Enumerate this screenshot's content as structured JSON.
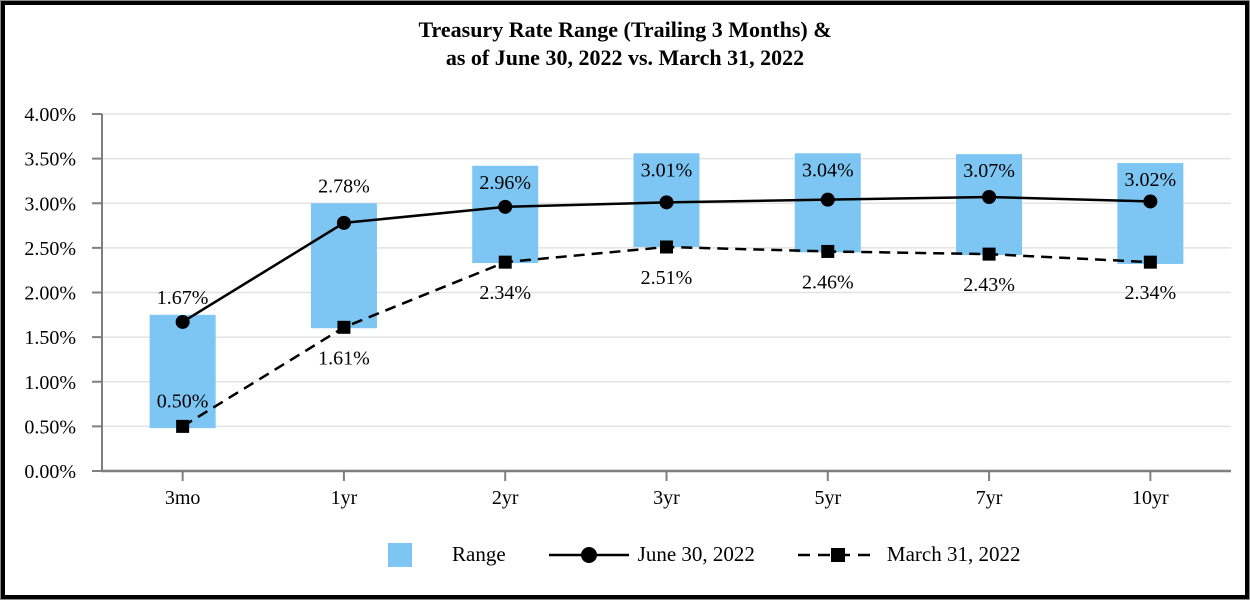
{
  "title": {
    "line1": "Treasury Rate Range (Trailing 3 Months) &",
    "line2": "as of June 30, 2022 vs. March 31, 2022"
  },
  "chart_data": {
    "type": "combo",
    "subtype": "floating range bars with two line series",
    "categories": [
      "3mo",
      "1yr",
      "2yr",
      "3yr",
      "5yr",
      "7yr",
      "10yr"
    ],
    "series": [
      {
        "name": "Range",
        "type": "bar",
        "color": "#7DC5F2",
        "low": [
          0.48,
          1.6,
          2.33,
          2.51,
          2.45,
          2.42,
          2.32
        ],
        "high": [
          1.75,
          3.0,
          3.42,
          3.56,
          3.56,
          3.55,
          3.45
        ]
      },
      {
        "name": "June 30, 2022",
        "type": "line",
        "style": "solid",
        "marker": "circle",
        "color": "#000000",
        "values": [
          1.67,
          2.78,
          2.96,
          3.01,
          3.04,
          3.07,
          3.02
        ],
        "labels": [
          "1.67%",
          "2.78%",
          "2.96%",
          "3.01%",
          "3.04%",
          "3.07%",
          "3.02%"
        ],
        "label_placement": [
          "above",
          "above",
          "inside",
          "inside",
          "inside",
          "inside",
          "inside"
        ]
      },
      {
        "name": "March 31, 2022",
        "type": "line",
        "style": "dashed",
        "marker": "square",
        "color": "#000000",
        "values": [
          0.5,
          1.61,
          2.34,
          2.51,
          2.46,
          2.43,
          2.34
        ],
        "labels": [
          "0.50%",
          "1.61%",
          "2.34%",
          "2.51%",
          "2.46%",
          "2.43%",
          "2.34%"
        ],
        "label_placement": [
          "above",
          "below",
          "below",
          "below",
          "below",
          "below",
          "below"
        ]
      }
    ],
    "y_axis": {
      "min": 0,
      "max": 4,
      "step": 0.5,
      "tick_labels": [
        "0.00%",
        "0.50%",
        "1.00%",
        "1.50%",
        "2.00%",
        "2.50%",
        "3.00%",
        "3.50%",
        "4.00%"
      ]
    },
    "x_axis": {
      "tick_labels": [
        "3mo",
        "1yr",
        "2yr",
        "3yr",
        "5yr",
        "7yr",
        "10yr"
      ]
    },
    "legend": {
      "position": "bottom-center",
      "items": [
        {
          "label": "Range",
          "swatch": "filled-square",
          "color": "#7DC5F2"
        },
        {
          "label": "June 30, 2022",
          "swatch": "solid-line-circle-marker",
          "color": "#000000"
        },
        {
          "label": "March 31, 2022",
          "swatch": "dashed-line-square-marker",
          "color": "#000000"
        }
      ]
    },
    "grid": {
      "show": true,
      "color": "#E3E3E3"
    },
    "axis_color": "#7F7F7F"
  }
}
